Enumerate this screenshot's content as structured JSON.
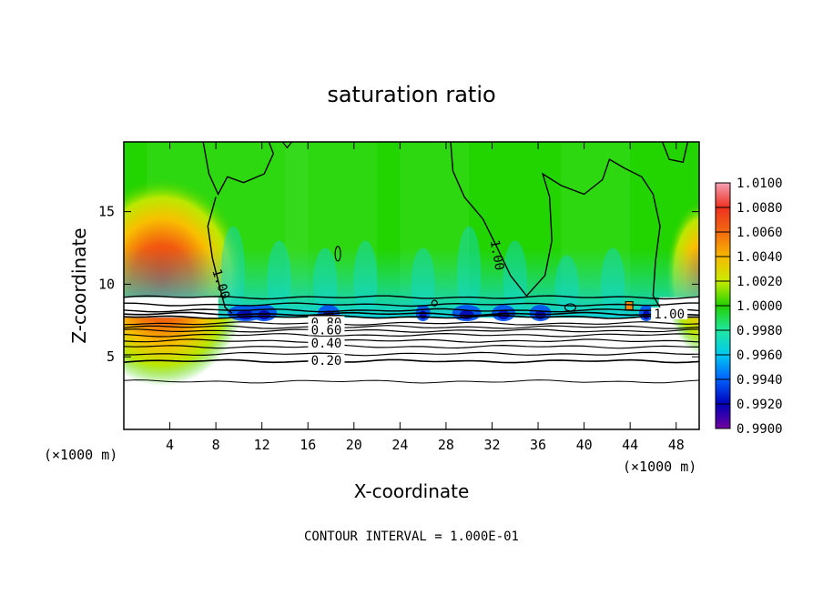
{
  "chart_data": {
    "type": "heatmap",
    "title": "saturation ratio",
    "xlabel": "X-coordinate",
    "ylabel": "Z-coordinate",
    "x_unit": "(×1000 m)",
    "x_unit_right": "(×1000 m)",
    "x_ticks": [
      4,
      8,
      12,
      16,
      20,
      24,
      28,
      32,
      36,
      40,
      44,
      48
    ],
    "y_ticks": [
      5,
      10,
      15
    ],
    "xlim": [
      0,
      50
    ],
    "ylim": [
      0,
      19.8
    ],
    "colorbar": {
      "ticks": [
        "1.0100",
        "1.0080",
        "1.0060",
        "1.0040",
        "1.0020",
        "1.0000",
        "0.9980",
        "0.9960",
        "0.9940",
        "0.9920",
        "0.9900"
      ],
      "range": [
        0.99,
        1.01
      ],
      "colors": [
        "#f4a0b4",
        "#ee3020",
        "#f26a10",
        "#f8b800",
        "#c8ec00",
        "#22d000",
        "#20e8a0",
        "#00c8f0",
        "#0060ff",
        "#0000b8",
        "#7000a0"
      ]
    },
    "contour_labels": [
      {
        "text": "1.00",
        "x": 8.4,
        "y": 10.0,
        "angle": 72
      },
      {
        "text": "1.00",
        "x": 32.4,
        "y": 12.0,
        "angle": 80
      },
      {
        "text": "1.00",
        "x": 47.4,
        "y": 7.9,
        "angle": 0
      },
      {
        "text": "0.80",
        "x": 17.6,
        "y": 7.3,
        "angle": 0
      },
      {
        "text": "0.60",
        "x": 17.6,
        "y": 6.8,
        "angle": 0
      },
      {
        "text": "0.40",
        "x": 17.6,
        "y": 5.9,
        "angle": 0
      },
      {
        "text": "0.20",
        "x": 17.6,
        "y": 4.7,
        "angle": 0
      }
    ],
    "contour_interval_note": "CONTOUR INTERVAL = 1.000E-01"
  }
}
